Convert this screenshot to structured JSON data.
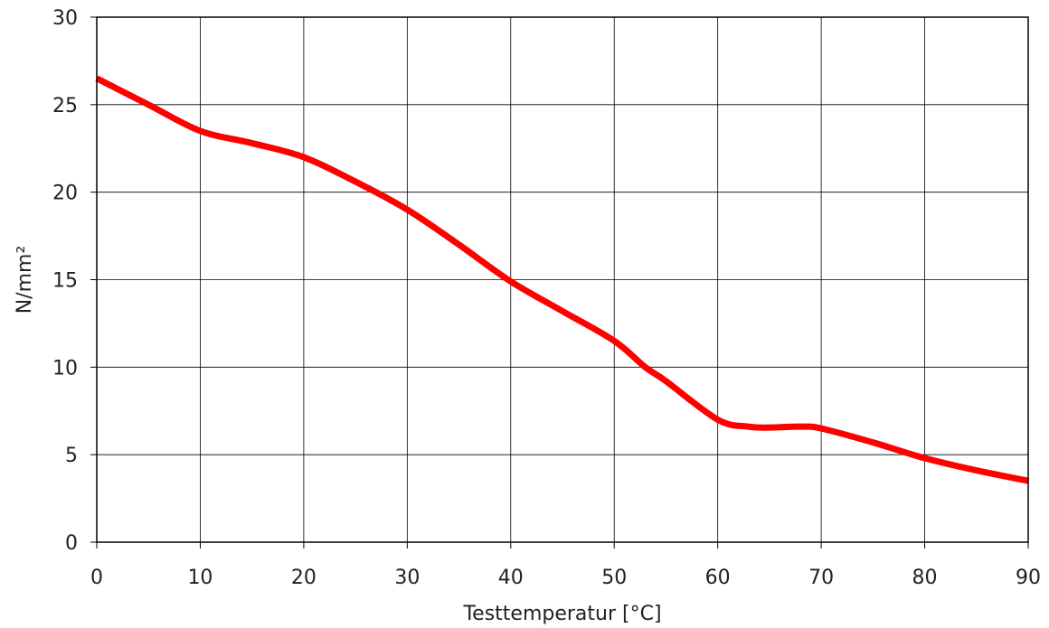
{
  "chart_data": {
    "type": "line",
    "title": "",
    "xlabel": "Testtemperatur [°C]",
    "ylabel": "N/mm²",
    "xlim": [
      0,
      90
    ],
    "ylim": [
      0,
      30
    ],
    "x_ticks": [
      0,
      10,
      20,
      30,
      40,
      50,
      60,
      70,
      80,
      90
    ],
    "y_ticks": [
      0,
      5,
      10,
      15,
      20,
      25,
      30
    ],
    "grid": true,
    "legend": "none",
    "series": [
      {
        "color": "#ff0000",
        "x": [
          0,
          5,
          10,
          15,
          20,
          25,
          30,
          35,
          40,
          45,
          50,
          53,
          55,
          60,
          63,
          65,
          68,
          70,
          75,
          80,
          85,
          90
        ],
        "y": [
          26.5,
          25.0,
          23.5,
          22.8,
          22.0,
          20.6,
          19.0,
          17.0,
          14.9,
          13.2,
          11.5,
          10.0,
          9.2,
          7.0,
          6.6,
          6.55,
          6.6,
          6.5,
          5.7,
          4.8,
          4.1,
          3.5
        ]
      }
    ]
  }
}
